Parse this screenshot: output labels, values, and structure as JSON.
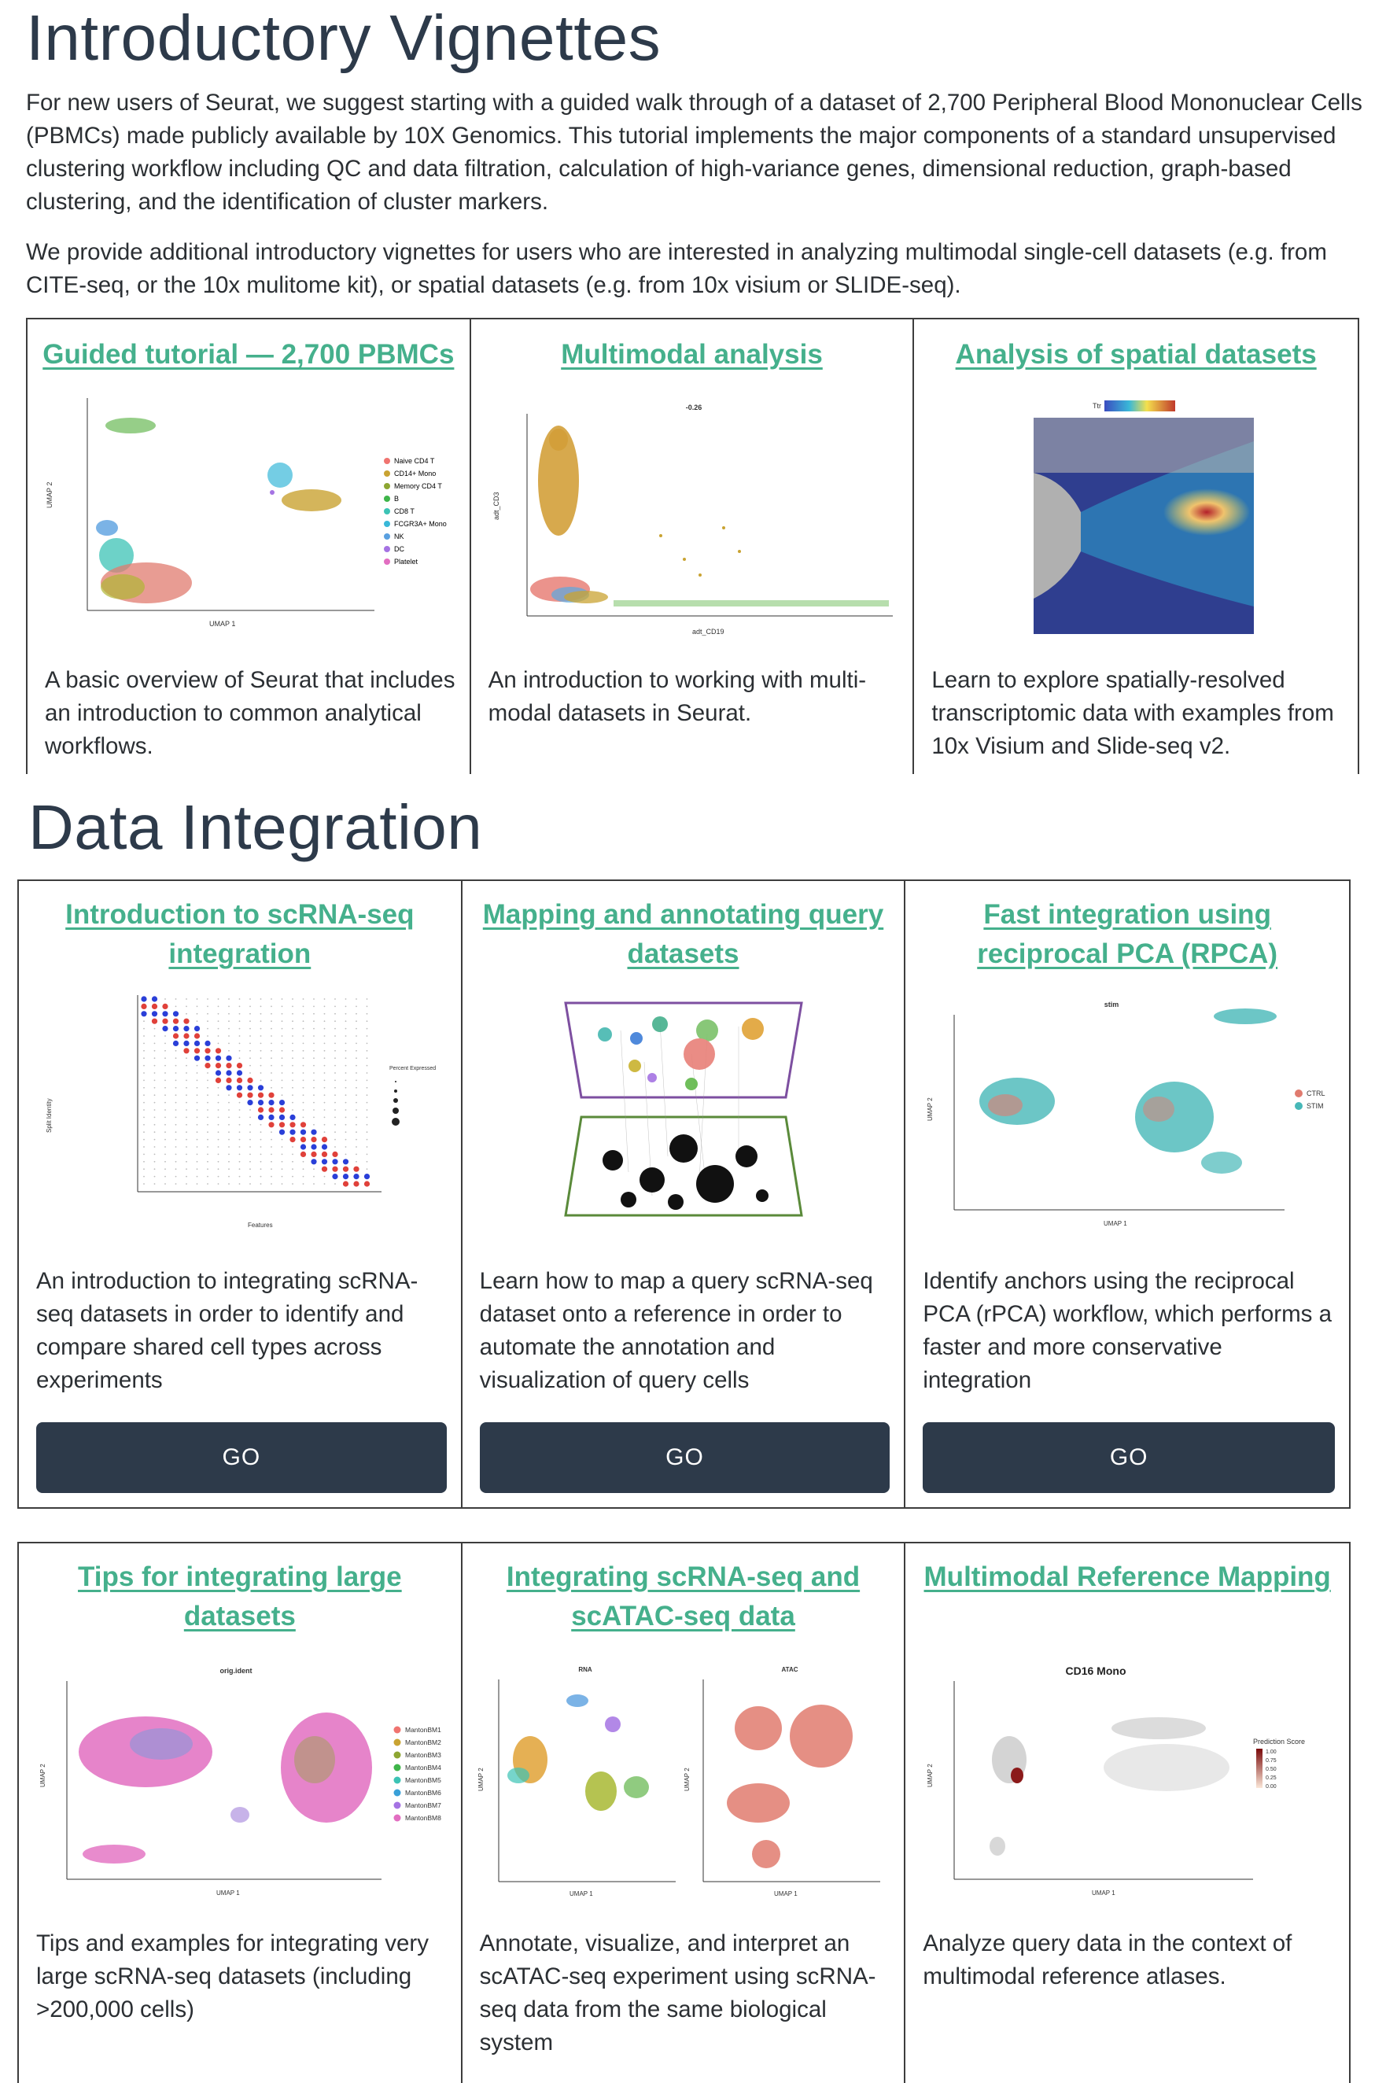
{
  "intro": {
    "heading": "Introductory Vignettes",
    "paragraph1": "For new users of Seurat, we suggest starting with a guided walk through of a dataset of 2,700 Peripheral Blood Mononuclear Cells (PBMCs) made publicly available by 10X Genomics. This tutorial implements the major components of a standard unsupervised clustering workflow including QC and data filtration, calculation of high-variance genes, dimensional reduction, graph-based clustering, and the identification of cluster markers.",
    "paragraph2": "We provide additional introductory vignettes for users who are interested in analyzing multimodal single-cell datasets (e.g. from CITE-seq, or the 10x mulitome kit), or spatial datasets (e.g. from 10x visium or SLIDE-seq).",
    "cards": [
      {
        "title": "Guided tutorial — 2,700 PBMCs",
        "description": "A basic overview of Seurat that includes an introduction to common analytical workflows.",
        "legend": [
          "Naive CD4 T",
          "CD14+ Mono",
          "Memory CD4 T",
          "B",
          "CD8 T",
          "FCGR3A+ Mono",
          "NK",
          "DC",
          "Platelet"
        ],
        "axis_x": "UMAP 1",
        "axis_y": "UMAP 2"
      },
      {
        "title": "Multimodal analysis",
        "description": "An introduction to working with multi-modal datasets in Seurat.",
        "plot_title": "-0.26",
        "axis_x": "adt_CD19",
        "axis_y": "adt_CD3"
      },
      {
        "title": "Analysis of spatial datasets",
        "description": "Learn to explore spatially-resolved transcriptomic data with examples from 10x Visium and Slide-seq v2.",
        "gene": "Ttr"
      }
    ]
  },
  "integration": {
    "heading": "Data Integration",
    "row1": [
      {
        "title": "Introduction to scRNA-seq integration",
        "description": "An introduction to integrating scRNA-seq datasets in order to identify and compare shared cell types across experiments",
        "button": "GO",
        "axis_x": "Features",
        "axis_y": "Split Identity",
        "legend_title": "Percent Expressed"
      },
      {
        "title": "Mapping and annotating query datasets",
        "description": "Learn how to map a query scRNA-seq dataset onto a reference in order to automate the annotation and visualization of query cells",
        "button": "GO"
      },
      {
        "title": "Fast integration using reciprocal PCA (RPCA)",
        "description": "Identify anchors using the reciprocal PCA (rPCA) workflow, which performs a faster and more conservative integration",
        "button": "GO",
        "plot_title": "stim",
        "legend": [
          "CTRL",
          "STIM"
        ],
        "axis_x": "UMAP 1",
        "axis_y": "UMAP 2"
      }
    ],
    "row2": [
      {
        "title": "Tips for integrating large datasets",
        "description": "Tips and examples for integrating very large scRNA-seq datasets (including >200,000 cells)",
        "plot_title": "orig.ident",
        "legend": [
          "MantonBM1",
          "MantonBM2",
          "MantonBM3",
          "MantonBM4",
          "MantonBM5",
          "MantonBM6",
          "MantonBM7",
          "MantonBM8"
        ],
        "axis_x": "UMAP 1",
        "axis_y": "UMAP 2"
      },
      {
        "title": "Integrating scRNA-seq and scATAC-seq data",
        "description": "Annotate, visualize, and interpret an scATAC-seq experiment using scRNA-seq data from the same biological system",
        "panel_left": "RNA",
        "panel_right": "ATAC",
        "axis_x": "UMAP 1",
        "axis_y": "UMAP 2"
      },
      {
        "title": "Multimodal Reference Mapping",
        "description": "Analyze query data in the context of multimodal reference atlases.",
        "plot_title": "CD16 Mono",
        "legend_title": "Prediction Score",
        "legend_values": [
          "1.00",
          "0.75",
          "0.50",
          "0.25",
          "0.00"
        ],
        "axis_x": "UMAP 1",
        "axis_y": "UMAP 2"
      }
    ]
  },
  "colors": {
    "link": "#45b08c",
    "heading": "#2d3a4a",
    "button_bg": "#2d3a4a",
    "border": "#3d3d3d"
  }
}
